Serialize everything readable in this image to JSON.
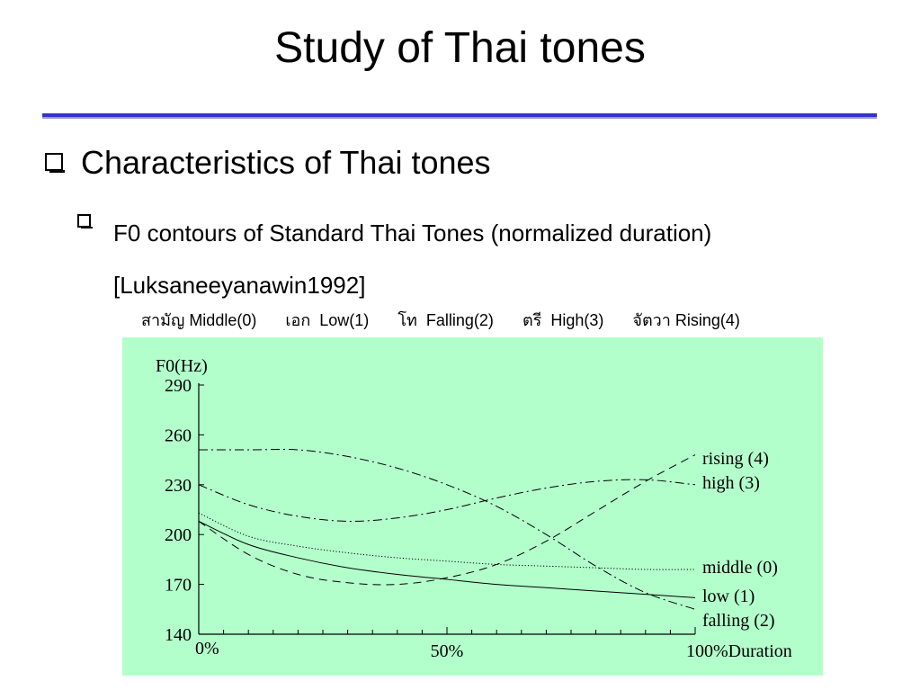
{
  "slide": {
    "title": "Study of Thai tones",
    "bullet1": "Characteristics of Thai tones",
    "bullet2": "F0 contours of Standard Thai Tones (normalized duration) [Luksaneeyanawin1992]",
    "tone_row": [
      {
        "thai": "สามัญ",
        "label": "Middle(0)"
      },
      {
        "thai": "เอก",
        "label": "Low(1)"
      },
      {
        "thai": "โท",
        "label": "Falling(2)"
      },
      {
        "thai": "ตรี",
        "label": "High(3)"
      },
      {
        "thai": "จัตวา",
        "label": "Rising(4)"
      }
    ]
  },
  "colors": {
    "accent_rule": "#3333cc",
    "chart_background": "#b3ffcc"
  },
  "chart_data": {
    "type": "line",
    "ylabel": "F0(Hz)",
    "xlabel": "Duration",
    "ylim": [
      140,
      290
    ],
    "xlim": [
      0,
      100
    ],
    "y_ticks": [
      290,
      260,
      230,
      200,
      170,
      140
    ],
    "x_tick_labels": [
      {
        "x": 0,
        "label": "0%"
      },
      {
        "x": 50,
        "label": "50%"
      },
      {
        "x": 100,
        "label": "100%Duration"
      }
    ],
    "grid": false,
    "series": [
      {
        "name": "middle (0)",
        "style": "dotted",
        "x": [
          0,
          10,
          20,
          30,
          40,
          50,
          60,
          70,
          80,
          90,
          100
        ],
        "y": [
          213,
          199,
          193,
          189,
          186,
          184,
          182,
          181,
          180,
          179,
          179
        ]
      },
      {
        "name": "low (1)",
        "style": "solid",
        "x": [
          0,
          10,
          20,
          30,
          40,
          50,
          60,
          70,
          80,
          90,
          100
        ],
        "y": [
          208,
          194,
          186,
          180,
          176,
          173,
          170,
          168,
          166,
          164,
          162
        ]
      },
      {
        "name": "falling (2)",
        "style": "dash-dot",
        "x": [
          0,
          10,
          20,
          30,
          40,
          50,
          60,
          70,
          80,
          90,
          100
        ],
        "y": [
          251,
          251,
          251,
          247,
          240,
          230,
          217,
          200,
          181,
          165,
          155
        ]
      },
      {
        "name": "high (3)",
        "style": "dash-dot",
        "x": [
          0,
          10,
          20,
          30,
          40,
          50,
          60,
          70,
          80,
          90,
          100
        ],
        "y": [
          230,
          218,
          211,
          208,
          210,
          215,
          222,
          228,
          232,
          233,
          230
        ]
      },
      {
        "name": "rising (4)",
        "style": "dashed",
        "x": [
          0,
          10,
          20,
          30,
          40,
          50,
          60,
          70,
          80,
          90,
          100
        ],
        "y": [
          208,
          188,
          176,
          171,
          170,
          174,
          182,
          196,
          214,
          232,
          248
        ]
      }
    ]
  }
}
